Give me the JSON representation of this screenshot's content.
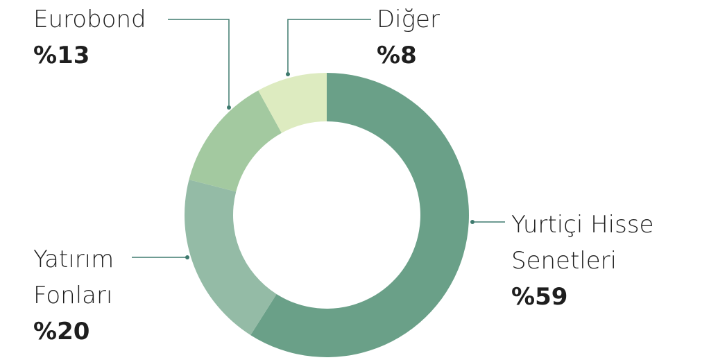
{
  "chart_data": {
    "type": "donut",
    "categories": [
      "Yurtiçi Hisse Senetleri",
      "Yatırım Fonları",
      "Eurobond",
      "Diğer"
    ],
    "values": [
      59,
      20,
      13,
      8
    ],
    "value_labels": [
      "%59",
      "%20",
      "%13",
      "%8"
    ],
    "colors": [
      "#6aa088",
      "#94bba6",
      "#a3c9a0",
      "#ddebc0"
    ]
  }
}
